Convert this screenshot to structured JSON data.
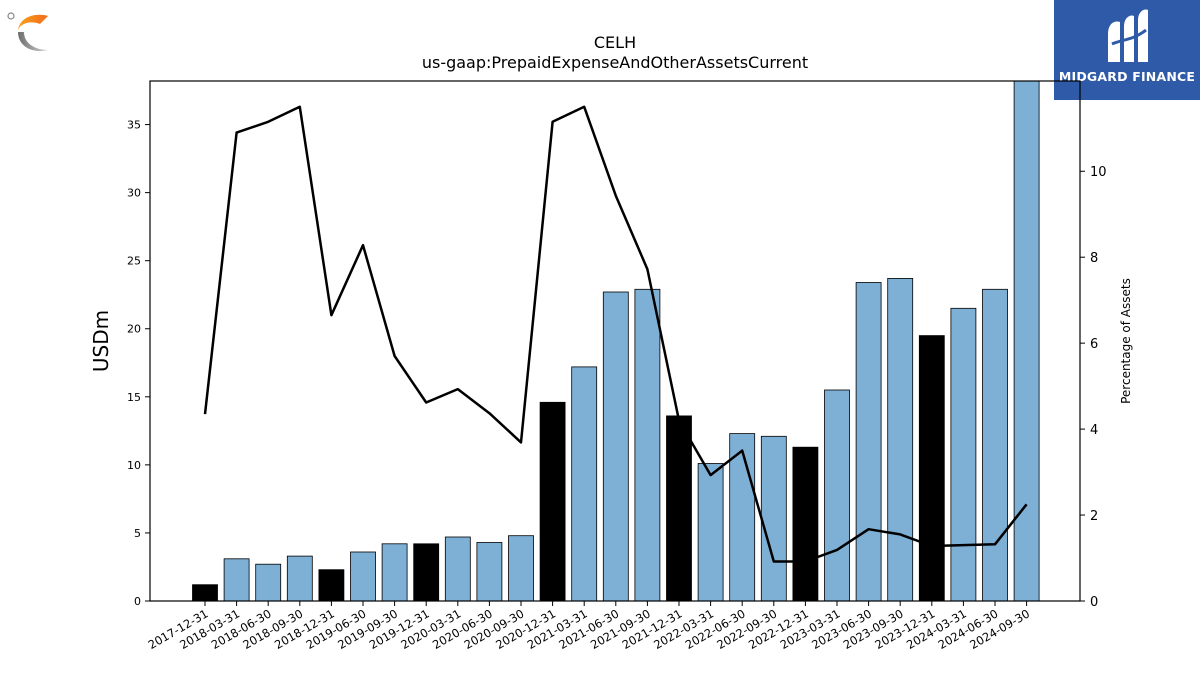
{
  "brand": {
    "right_logo_text": "MIDGARD FINANCE"
  },
  "chart_data": {
    "type": "bar",
    "title": "CELH",
    "subtitle": "us-gaap:PrepaidExpenseAndOtherAssetsCurrent",
    "ylabel": "USDm",
    "y2label": "Percentage of Assets",
    "ylim": [
      0,
      38.2
    ],
    "y2lim": [
      0,
      12.1
    ],
    "yticks": [
      0,
      5,
      10,
      15,
      20,
      25,
      30,
      35
    ],
    "y2ticks": [
      0,
      2,
      4,
      6,
      8,
      10
    ],
    "categories": [
      "2017-12-31",
      "2018-03-31",
      "2018-06-30",
      "2018-09-30",
      "2018-12-31",
      "2019-06-30",
      "2019-09-30",
      "2019-12-31",
      "2020-03-31",
      "2020-06-30",
      "2020-09-30",
      "2020-12-31",
      "2021-03-31",
      "2021-06-30",
      "2021-09-30",
      "2021-12-31",
      "2022-03-31",
      "2022-06-30",
      "2022-09-30",
      "2022-12-31",
      "2023-03-31",
      "2023-06-30",
      "2023-09-30",
      "2023-12-31",
      "2024-03-31",
      "2024-06-30",
      "2024-09-30"
    ],
    "series": [
      {
        "type": "bar",
        "values": [
          1.2,
          3.1,
          2.7,
          3.3,
          2.3,
          3.6,
          4.2,
          4.2,
          4.7,
          4.3,
          4.8,
          14.6,
          17.2,
          22.7,
          22.9,
          13.6,
          10.1,
          12.3,
          12.1,
          11.3,
          15.5,
          23.4,
          23.7,
          19.5,
          21.5,
          22.9,
          38.5
        ],
        "year_end_color": "#000000",
        "quarter_color": "#7eb0d5"
      },
      {
        "type": "line",
        "axis": "right",
        "values": [
          4.35,
          10.9,
          11.15,
          11.5,
          6.65,
          8.28,
          5.7,
          4.62,
          4.93,
          4.37,
          3.69,
          11.15,
          11.5,
          9.43,
          7.72,
          4.2,
          2.93,
          3.5,
          0.92,
          0.92,
          1.19,
          1.67,
          1.55,
          1.28,
          1.3,
          1.32,
          2.25
        ],
        "color": "#000000"
      }
    ],
    "year_end_flags": [
      true,
      false,
      false,
      false,
      true,
      false,
      false,
      true,
      false,
      false,
      false,
      true,
      false,
      false,
      false,
      true,
      false,
      false,
      false,
      true,
      false,
      false,
      false,
      true,
      false,
      false,
      false
    ],
    "grid": false
  }
}
